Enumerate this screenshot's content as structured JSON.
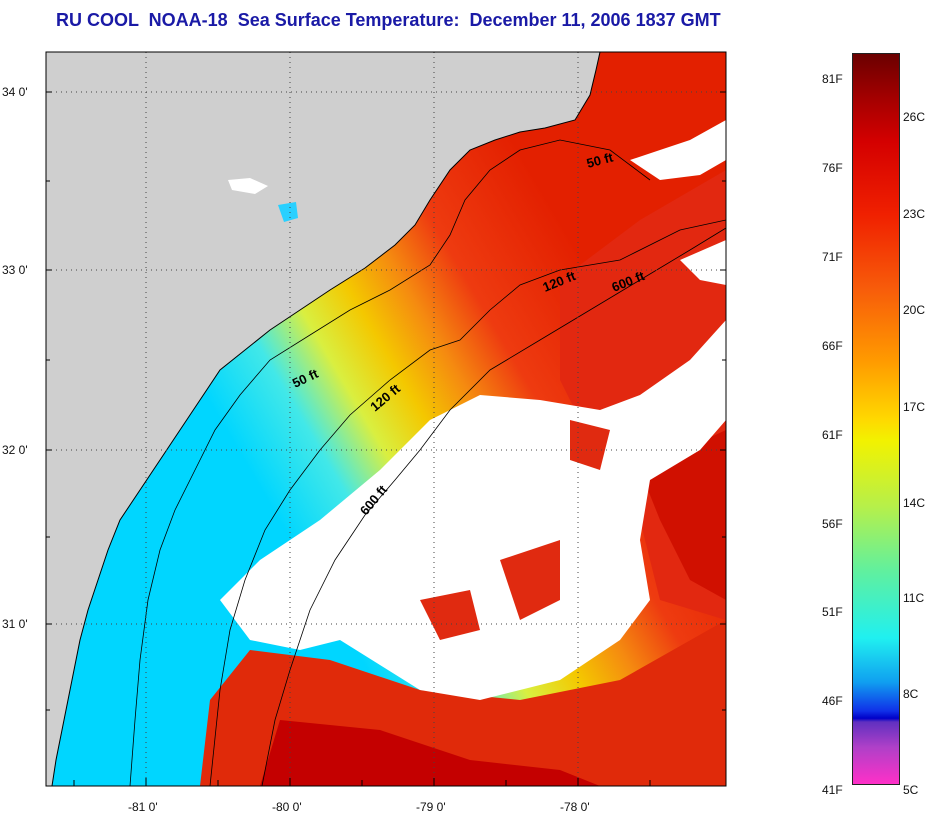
{
  "title": "RU COOL  NOAA-18  Sea Surface Temperature:  December 11, 2006 1837 GMT",
  "map": {
    "lat_labels": [
      "34 0'",
      "33 0'",
      "32 0'",
      "31 0'"
    ],
    "lon_labels": [
      "-81 0'",
      "-80 0'",
      "-79 0'",
      "-78 0'"
    ],
    "isobath_labels": [
      "50 ft",
      "120 ft",
      "600 ft",
      "50 ft",
      "120 ft",
      "600 ft"
    ],
    "colors": {
      "land": "#cfcfcf",
      "cloud": "#ffffff",
      "grid": "#444444",
      "coast": "#000000"
    }
  },
  "colorbar": {
    "fahrenheit": [
      "81F",
      "76F",
      "71F",
      "66F",
      "61F",
      "56F",
      "51F",
      "46F",
      "41F"
    ],
    "celsius": [
      "26C",
      "23C",
      "20C",
      "17C",
      "14C",
      "11C",
      "8C",
      "5C"
    ]
  }
}
